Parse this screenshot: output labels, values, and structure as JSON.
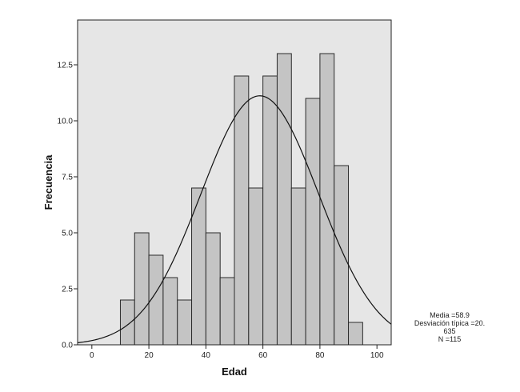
{
  "chart_data": {
    "type": "bar",
    "subtype": "histogram",
    "xlabel": "Edad",
    "ylabel": "Frecuencia",
    "xlim": [
      -5,
      105
    ],
    "ylim": [
      0,
      14.5
    ],
    "x_ticks": [
      {
        "value": 0,
        "label": "0"
      },
      {
        "value": 20,
        "label": "20"
      },
      {
        "value": 40,
        "label": "40"
      },
      {
        "value": 60,
        "label": "60"
      },
      {
        "value": 80,
        "label": "80"
      },
      {
        "value": 100,
        "label": "100"
      }
    ],
    "y_ticks": [
      {
        "value": 0,
        "label": "0.0"
      },
      {
        "value": 2.5,
        "label": "2.5"
      },
      {
        "value": 5,
        "label": "5.0"
      },
      {
        "value": 7.5,
        "label": "7.5"
      },
      {
        "value": 10,
        "label": "10.0"
      },
      {
        "value": 12.5,
        "label": "12.5"
      }
    ],
    "bin_width": 5,
    "bins": [
      {
        "start": 10,
        "end": 15,
        "count": 2
      },
      {
        "start": 15,
        "end": 20,
        "count": 5
      },
      {
        "start": 20,
        "end": 25,
        "count": 4
      },
      {
        "start": 25,
        "end": 30,
        "count": 3
      },
      {
        "start": 30,
        "end": 35,
        "count": 2
      },
      {
        "start": 35,
        "end": 40,
        "count": 7
      },
      {
        "start": 40,
        "end": 45,
        "count": 5
      },
      {
        "start": 45,
        "end": 50,
        "count": 3
      },
      {
        "start": 50,
        "end": 55,
        "count": 12
      },
      {
        "start": 55,
        "end": 60,
        "count": 7
      },
      {
        "start": 60,
        "end": 65,
        "count": 12
      },
      {
        "start": 65,
        "end": 70,
        "count": 13
      },
      {
        "start": 70,
        "end": 75,
        "count": 7
      },
      {
        "start": 75,
        "end": 80,
        "count": 11
      },
      {
        "start": 80,
        "end": 85,
        "count": 13
      },
      {
        "start": 85,
        "end": 90,
        "count": 8
      },
      {
        "start": 90,
        "end": 95,
        "count": 1
      }
    ],
    "normal_curve": {
      "mean": 58.9,
      "sd": 20.635,
      "n": 115
    },
    "grid": false,
    "colors": {
      "plot_background": "#e6e6e6",
      "bar_fill": "#c4c4c4",
      "bar_stroke": "#2b2b2b",
      "curve": "#111111"
    }
  },
  "stats": {
    "mean_line": "Media =58.9",
    "sd_line": "Desviación típica =20.",
    "sd_cont": "635",
    "n_line": "N =115"
  }
}
